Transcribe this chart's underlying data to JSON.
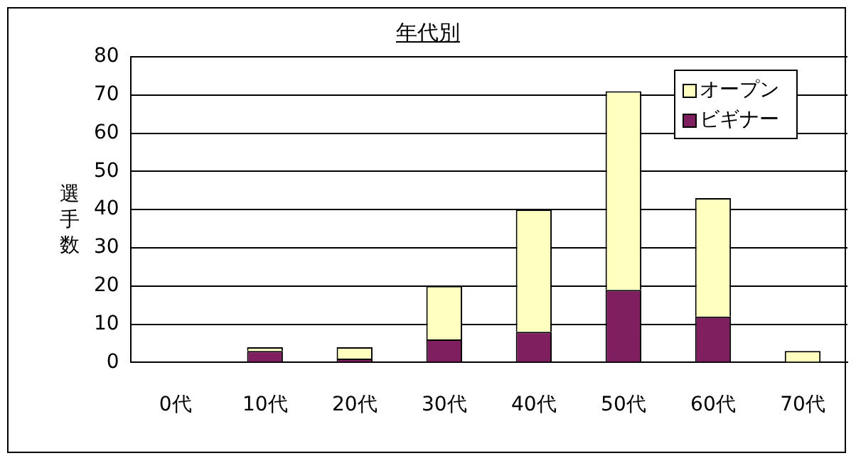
{
  "chart_data": {
    "type": "bar",
    "title": "年代別",
    "ylabel": "選手数",
    "stacked": true,
    "categories": [
      "0代",
      "10代",
      "20代",
      "30代",
      "40代",
      "50代",
      "60代",
      "70代"
    ],
    "series": [
      {
        "name": "ビギナー",
        "color": "#7f1f5f",
        "values": [
          0,
          3,
          1,
          6,
          8,
          19,
          12,
          0
        ]
      },
      {
        "name": "オープン",
        "color": "#ffffc0",
        "values": [
          0,
          1,
          3,
          14,
          32,
          52,
          31,
          3
        ]
      }
    ],
    "ylim": [
      0,
      80
    ],
    "yticks": [
      0,
      10,
      20,
      30,
      40,
      50,
      60,
      70,
      80
    ],
    "grid": "y",
    "legend": "top right"
  }
}
